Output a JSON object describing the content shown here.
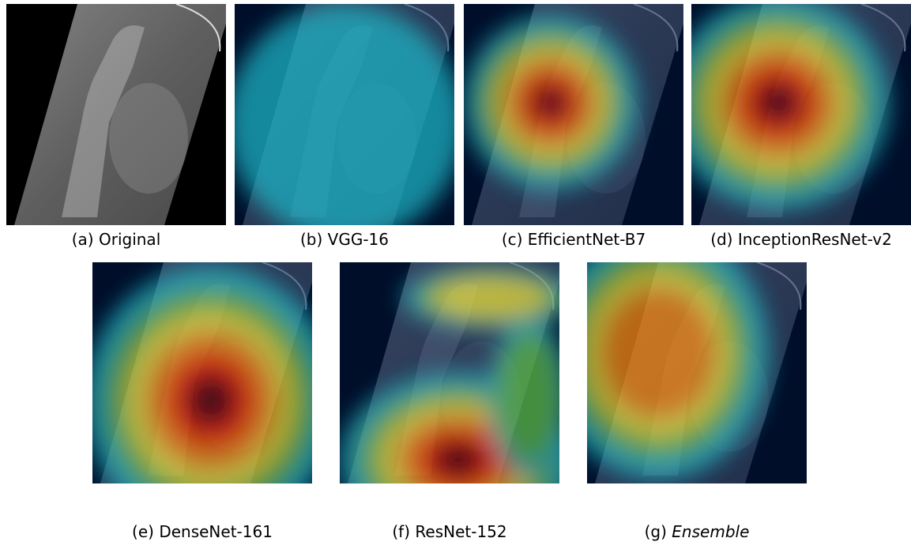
{
  "panels": [
    {
      "label": "(a)",
      "name": "Original"
    },
    {
      "label": "(b)",
      "name": "VGG-16"
    },
    {
      "label": "(c)",
      "name": "EfficientNet-B7"
    },
    {
      "label": "(d)",
      "name": "InceptionResNet-v2"
    },
    {
      "label": "(e)",
      "name": "DenseNet-161"
    },
    {
      "label": "(f)",
      "name": "ResNet-152"
    },
    {
      "label": "(g)",
      "name": "Ensemble",
      "italic": true
    }
  ]
}
